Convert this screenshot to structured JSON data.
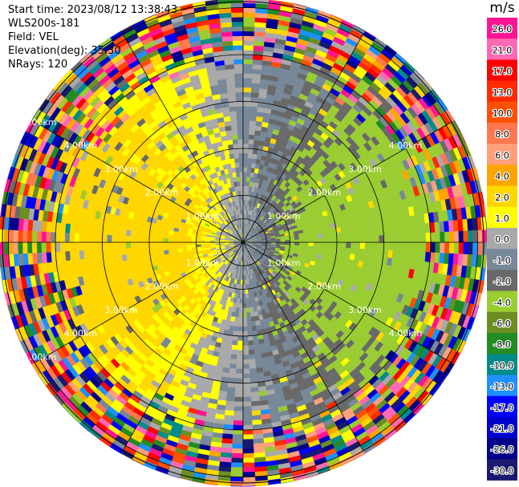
{
  "header": {
    "start_time": "Start time: 2023/08/12 13:38:43",
    "instrument": "WLS200s-181",
    "field": "Field: VEL",
    "elevation": "Elevation(deg): 35.30",
    "nrays": "NRays: 120"
  },
  "colorbar": {
    "unit": "m/s",
    "ticks": [
      "26.0",
      "21.0",
      "17.0",
      "13.0",
      "10.0",
      "8.0",
      "6.0",
      "4.0",
      "2.0",
      "1.0",
      "0.0",
      "-1.0",
      "-2.0",
      "-4.0",
      "-6.0",
      "-8.0",
      "-10.0",
      "-13.0",
      "-17.0",
      "-21.0",
      "-26.0",
      "-30.0"
    ],
    "colors": [
      "#ff1493",
      "#ff69b4",
      "#ff0000",
      "#ff2a00",
      "#ff5000",
      "#ff7850",
      "#ffa07a",
      "#ffa500",
      "#ffd700",
      "#ffff00",
      "#a9a9a9",
      "#778899",
      "#696969",
      "#9acd32",
      "#6b8e23",
      "#228b22",
      "#008b8b",
      "#1e90ff",
      "#0000ff",
      "#0000cd",
      "#00008b",
      "#191970"
    ]
  },
  "range_labels_right": [
    "1.00km",
    "2.00km",
    "3.00km",
    "4.00km"
  ],
  "range_labels_left": [
    "1.00km",
    "2.00km",
    "3.00km",
    "4.00km",
    "5.00km"
  ],
  "chart_data": {
    "type": "heatmap",
    "projection": "polar PPI",
    "field": "VEL",
    "units": "m/s",
    "rays": 120,
    "range_rings_km": [
      0.5,
      1.0,
      2.0,
      3.0,
      4.0,
      5.0
    ],
    "max_range_km": 5.2,
    "color_levels": [
      -30,
      -26,
      -21,
      -17,
      -13,
      -10,
      -8,
      -6,
      -4,
      -2,
      -1,
      0,
      1,
      2,
      4,
      6,
      8,
      10,
      13,
      17,
      21,
      26
    ],
    "pattern": {
      "east_sector": "negative velocities (-1 to -4 m/s, green)",
      "west_sector": "positive velocities (1 to 4 m/s, yellow)",
      "north_south_inner": "near zero (grey)",
      "outer_ranges_km": "beyond ~3.5 km noisy values spanning -30 to 26 m/s"
    }
  }
}
